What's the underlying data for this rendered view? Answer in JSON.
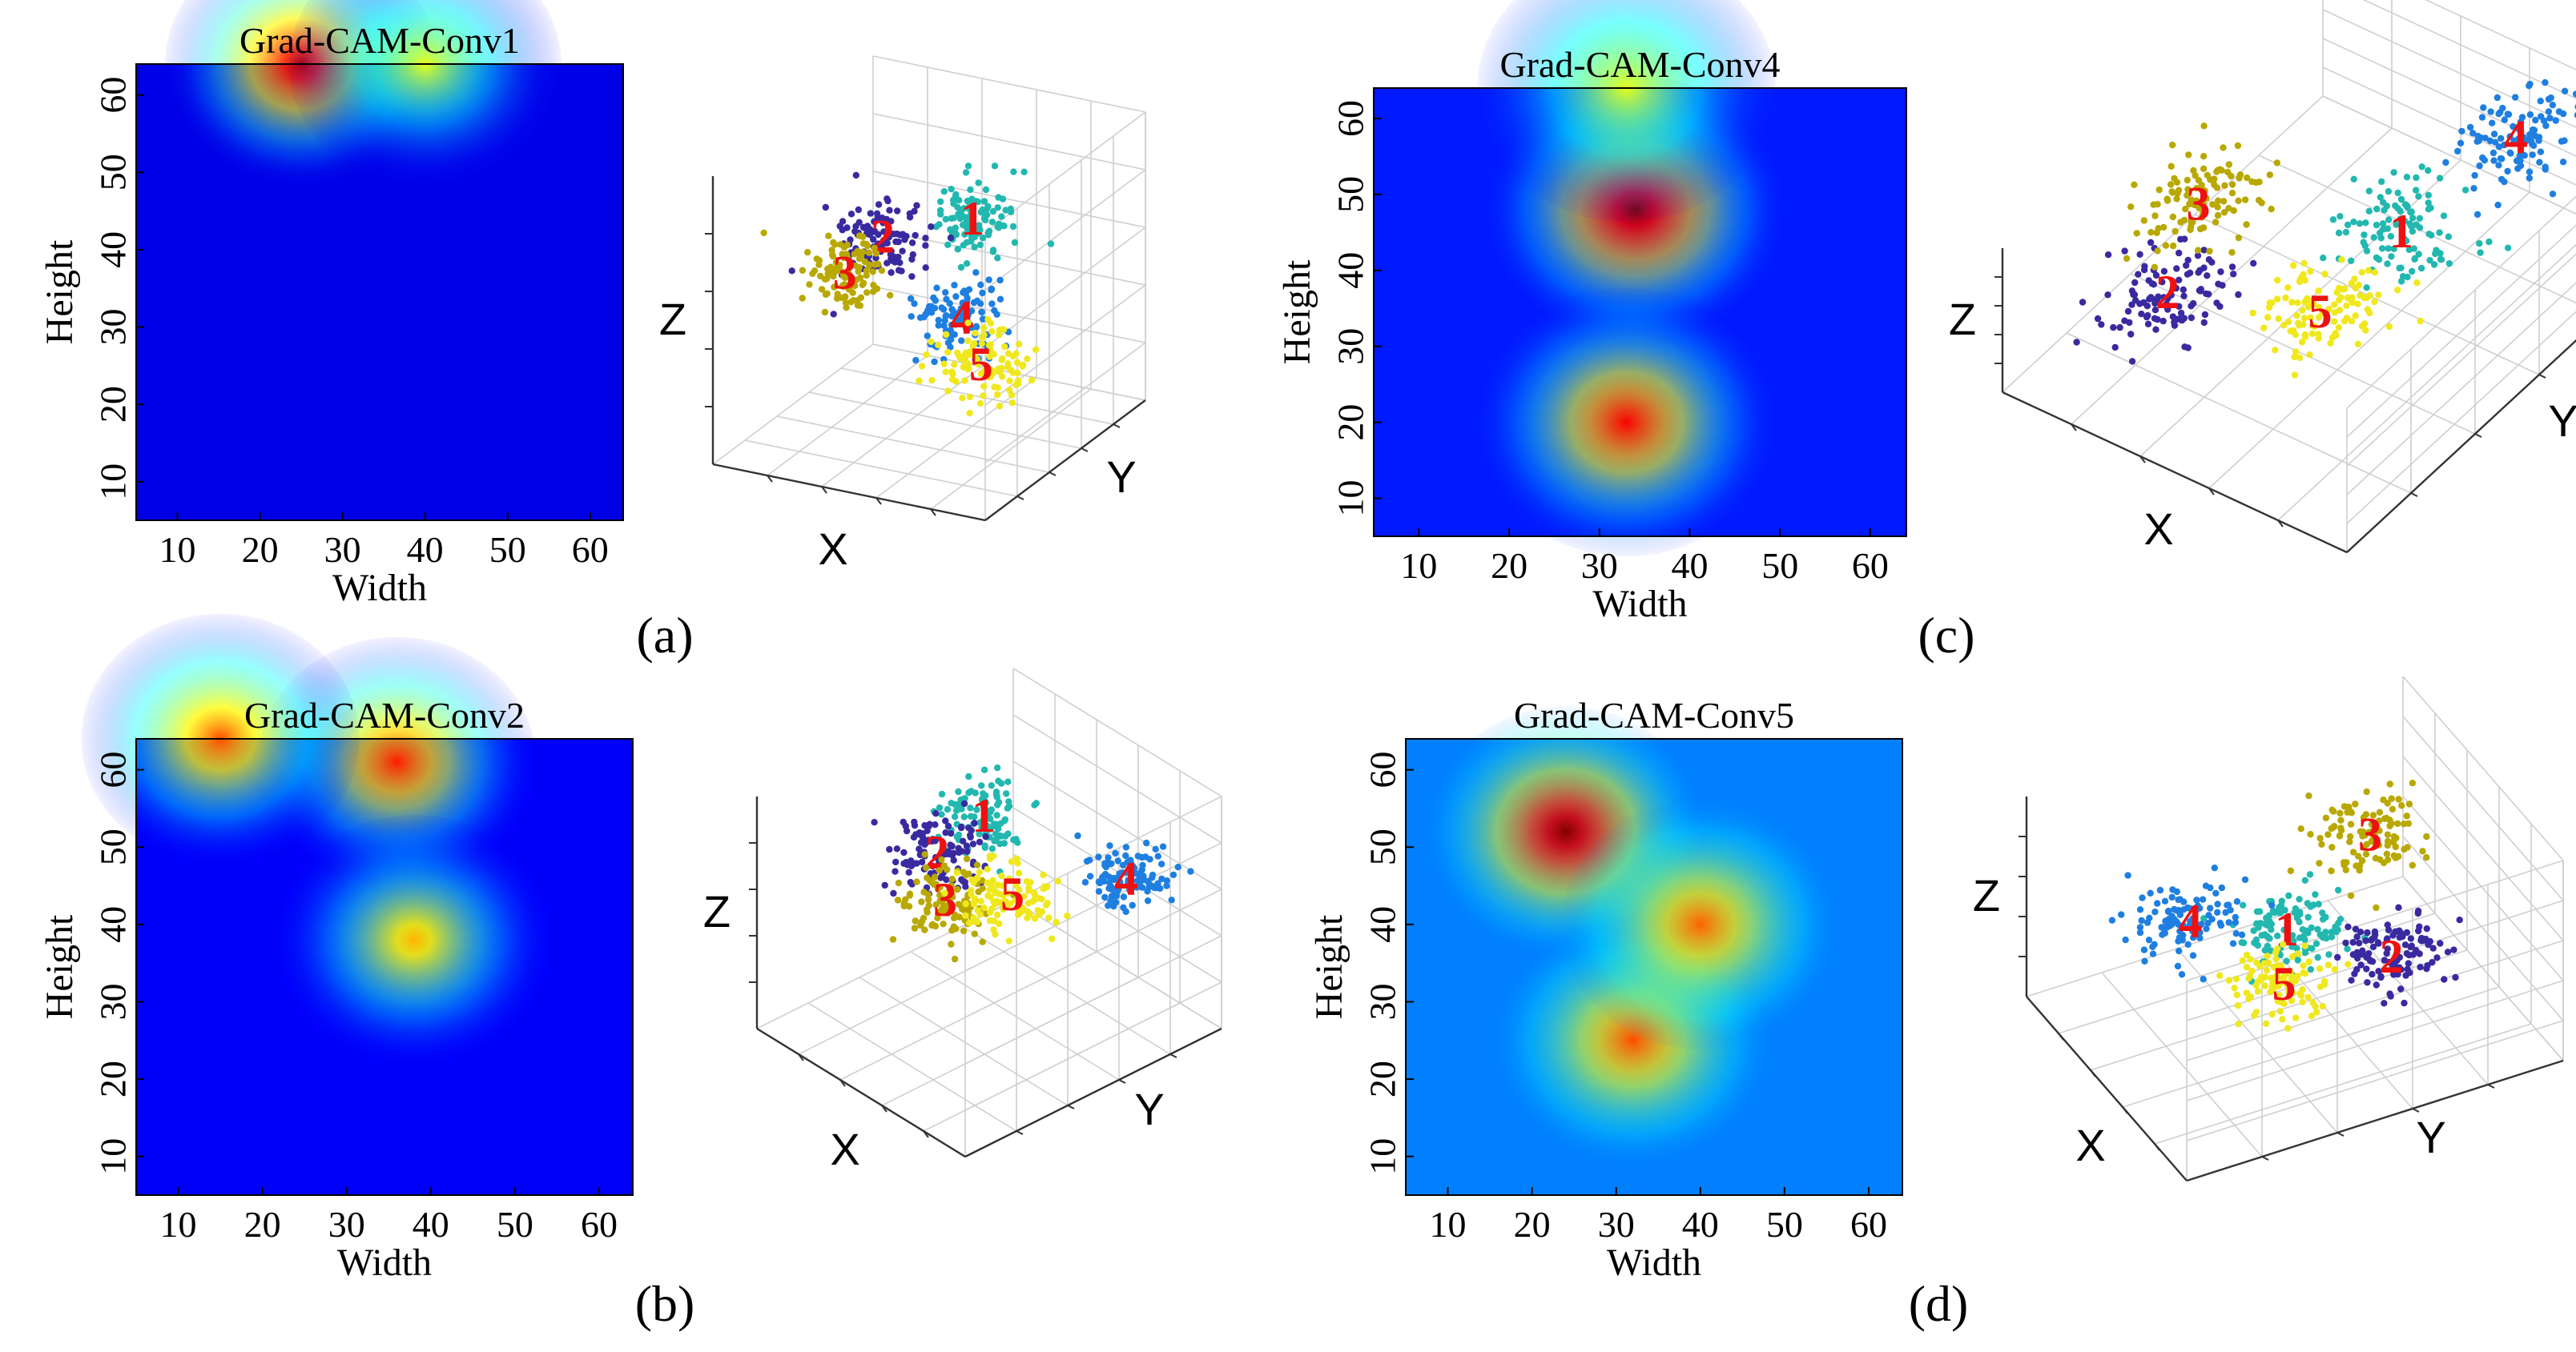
{
  "chart_data": [
    {
      "type": "heatmap",
      "panel_label": "(a)",
      "title": "Grad-CAM-Conv1",
      "xlabel": "Width",
      "ylabel": "Height",
      "xticks": [
        10,
        20,
        30,
        40,
        50,
        60
      ],
      "yticks": [
        10,
        20,
        30,
        40,
        50,
        60
      ],
      "xlim": [
        5,
        64
      ],
      "ylim": [
        5,
        64
      ],
      "colormap": "jet",
      "hotspots": [
        {
          "x": 25,
          "y": 64,
          "intensity": 0.95
        },
        {
          "x": 40,
          "y": 64,
          "intensity": 0.6
        }
      ],
      "background_intensity": 0.1
    },
    {
      "type": "scatter",
      "panel_label": "(a)",
      "dimensions": 3,
      "axis_labels": {
        "x": "X",
        "y": "Y",
        "z": "Z"
      },
      "clusters": [
        {
          "label": "1",
          "color": "#22b8b0",
          "center": [
            0.6,
            0.6,
            0.72
          ]
        },
        {
          "label": "2",
          "color": "#3a2aa0",
          "center": [
            0.3,
            0.55,
            0.62
          ]
        },
        {
          "label": "3",
          "color": "#b8a800",
          "center": [
            0.22,
            0.45,
            0.52
          ]
        },
        {
          "label": "4",
          "color": "#1f7fe0",
          "center": [
            0.62,
            0.5,
            0.42
          ]
        },
        {
          "label": "5",
          "color": "#f0e81e",
          "center": [
            0.72,
            0.45,
            0.3
          ]
        }
      ]
    },
    {
      "type": "heatmap",
      "panel_label": "(b)",
      "title": "Grad-CAM-Conv2",
      "xlabel": "Width",
      "ylabel": "Height",
      "xticks": [
        10,
        20,
        30,
        40,
        50,
        60
      ],
      "yticks": [
        10,
        20,
        30,
        40,
        50,
        60
      ],
      "xlim": [
        5,
        64
      ],
      "ylim": [
        5,
        64
      ],
      "colormap": "jet",
      "hotspots": [
        {
          "x": 36,
          "y": 61,
          "intensity": 0.85
        },
        {
          "x": 38,
          "y": 38,
          "intensity": 0.7
        },
        {
          "x": 15,
          "y": 64,
          "intensity": 0.8
        }
      ],
      "background_intensity": 0.12
    },
    {
      "type": "scatter",
      "panel_label": "(b)",
      "dimensions": 3,
      "axis_labels": {
        "x": "X",
        "y": "Y",
        "z": "Z"
      },
      "clusters": [
        {
          "label": "1",
          "color": "#22b8b0",
          "center": [
            0.35,
            0.6,
            0.78
          ]
        },
        {
          "label": "2",
          "color": "#3a2aa0",
          "center": [
            0.25,
            0.5,
            0.62
          ]
        },
        {
          "label": "3",
          "color": "#b8a800",
          "center": [
            0.35,
            0.45,
            0.5
          ]
        },
        {
          "label": "4",
          "color": "#1f7fe0",
          "center": [
            0.85,
            0.75,
            0.7
          ]
        },
        {
          "label": "5",
          "color": "#f0e81e",
          "center": [
            0.55,
            0.55,
            0.58
          ]
        }
      ]
    },
    {
      "type": "heatmap",
      "panel_label": "(c)",
      "title": "Grad-CAM-Conv4",
      "xlabel": "Width",
      "ylabel": "Height",
      "xticks": [
        10,
        20,
        30,
        40,
        50,
        60
      ],
      "yticks": [
        10,
        20,
        30,
        40,
        50,
        60
      ],
      "xlim": [
        5,
        64
      ],
      "ylim": [
        5,
        64
      ],
      "colormap": "jet",
      "hotspots": [
        {
          "x": 34,
          "y": 48,
          "intensity": 1.0
        },
        {
          "x": 33,
          "y": 20,
          "intensity": 0.88
        },
        {
          "x": 33,
          "y": 64,
          "intensity": 0.6
        }
      ],
      "background_intensity": 0.15
    },
    {
      "type": "scatter",
      "panel_label": "(c)",
      "dimensions": 3,
      "axis_labels": {
        "x": "X",
        "y": "Y",
        "z": "Z"
      },
      "clusters": [
        {
          "label": "1",
          "color": "#22b8b0",
          "center": [
            0.6,
            0.6,
            0.55
          ]
        },
        {
          "label": "2",
          "color": "#3a2aa0",
          "center": [
            0.2,
            0.3,
            0.3
          ]
        },
        {
          "label": "3",
          "color": "#b8a800",
          "center": [
            0.15,
            0.45,
            0.55
          ]
        },
        {
          "label": "4",
          "color": "#1f7fe0",
          "center": [
            0.7,
            0.85,
            0.8
          ]
        },
        {
          "label": "5",
          "color": "#f0e81e",
          "center": [
            0.55,
            0.4,
            0.35
          ]
        }
      ]
    },
    {
      "type": "heatmap",
      "panel_label": "(d)",
      "title": "Grad-CAM-Conv5",
      "xlabel": "Width",
      "ylabel": "Height",
      "xticks": [
        10,
        20,
        30,
        40,
        50,
        60
      ],
      "yticks": [
        10,
        20,
        30,
        40,
        50,
        60
      ],
      "xlim": [
        5,
        64
      ],
      "ylim": [
        5,
        64
      ],
      "colormap": "jet",
      "hotspots": [
        {
          "x": 24,
          "y": 52,
          "intensity": 1.0
        },
        {
          "x": 32,
          "y": 25,
          "intensity": 0.8
        },
        {
          "x": 40,
          "y": 40,
          "intensity": 0.78
        }
      ],
      "background_intensity": 0.25
    },
    {
      "type": "scatter",
      "panel_label": "(d)",
      "dimensions": 3,
      "axis_labels": {
        "x": "X",
        "y": "Y",
        "z": "Z"
      },
      "clusters": [
        {
          "label": "1",
          "color": "#22b8b0",
          "center": [
            0.45,
            0.5,
            0.45
          ]
        },
        {
          "label": "2",
          "color": "#3a2aa0",
          "center": [
            0.75,
            0.65,
            0.5
          ]
        },
        {
          "label": "3",
          "color": "#b8a800",
          "center": [
            0.5,
            0.7,
            0.85
          ]
        },
        {
          "label": "4",
          "color": "#1f7fe0",
          "center": [
            0.2,
            0.35,
            0.35
          ]
        },
        {
          "label": "5",
          "color": "#f0e81e",
          "center": [
            0.55,
            0.45,
            0.3
          ]
        }
      ]
    }
  ]
}
